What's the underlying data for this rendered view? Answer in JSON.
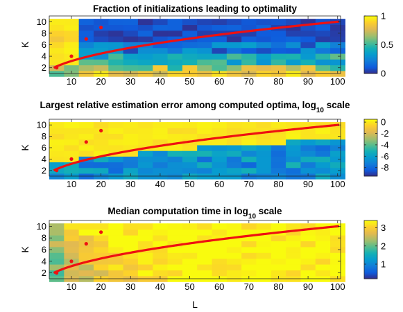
{
  "figure": {
    "xlabel": "L"
  },
  "chart_data": [
    {
      "type": "heatmap",
      "title": "Fraction of initializations leading to optimality",
      "title_sub": "",
      "title_suffix": "",
      "ylabel": "K",
      "xlim": [
        2.5,
        101
      ],
      "ylim": [
        1,
        11
      ],
      "x_ticks": [
        10,
        20,
        30,
        40,
        50,
        60,
        70,
        80,
        90,
        100
      ],
      "y_ticks": [
        2,
        4,
        6,
        8,
        10
      ],
      "colorbar": {
        "range": [
          0,
          1
        ],
        "ticks": [
          0,
          0.5,
          1
        ],
        "tick_labels": [
          "0",
          "0.5",
          "1"
        ]
      },
      "colormap": "parula",
      "grid": false,
      "overlay_line": "K = sqrt(L)",
      "highlight_points": [
        {
          "x": 5,
          "y": 2
        },
        {
          "x": 10,
          "y": 4
        },
        {
          "x": 15,
          "y": 7
        },
        {
          "x": 20,
          "y": 9
        }
      ],
      "field": "optimality-fraction"
    },
    {
      "type": "heatmap",
      "title": "Largest relative estimation error among computed optima, log",
      "title_sub": "10",
      "title_suffix": " scale",
      "ylabel": "K",
      "xlim": [
        2.5,
        101
      ],
      "ylim": [
        1,
        11
      ],
      "x_ticks": [
        10,
        20,
        30,
        40,
        50,
        60,
        70,
        80,
        90,
        100
      ],
      "y_ticks": [
        2,
        4,
        6,
        8,
        10
      ],
      "colorbar": {
        "range": [
          -9.5,
          0.5
        ],
        "ticks": [
          0,
          -2,
          -4,
          -6,
          -8
        ],
        "tick_labels": [
          "0",
          "-2",
          "-4",
          "-6",
          "-8"
        ]
      },
      "colormap": "parula",
      "grid": false,
      "overlay_line": "K = sqrt(L)",
      "highlight_points": [
        {
          "x": 5,
          "y": 2
        },
        {
          "x": 10,
          "y": 4
        },
        {
          "x": 15,
          "y": 7
        },
        {
          "x": 20,
          "y": 9
        }
      ],
      "field": "log-error"
    },
    {
      "type": "heatmap",
      "title": "Median computation time in log",
      "title_sub": "10",
      "title_suffix": " scale",
      "ylabel": "K",
      "xlim": [
        2.5,
        101
      ],
      "ylim": [
        1,
        11
      ],
      "x_ticks": [
        10,
        20,
        30,
        40,
        50,
        60,
        70,
        80,
        90,
        100
      ],
      "y_ticks": [
        2,
        4,
        6,
        8,
        10
      ],
      "colorbar": {
        "range": [
          0.2,
          3.4
        ],
        "ticks": [
          3,
          2,
          1
        ],
        "tick_labels": [
          "3",
          "2",
          "1"
        ]
      },
      "colormap": "parula",
      "grid": false,
      "overlay_line": "K = sqrt(L)",
      "highlight_points": [
        {
          "x": 5,
          "y": 2
        },
        {
          "x": 10,
          "y": 4
        },
        {
          "x": 15,
          "y": 7
        },
        {
          "x": 20,
          "y": 9
        }
      ],
      "field": "log-time"
    }
  ]
}
